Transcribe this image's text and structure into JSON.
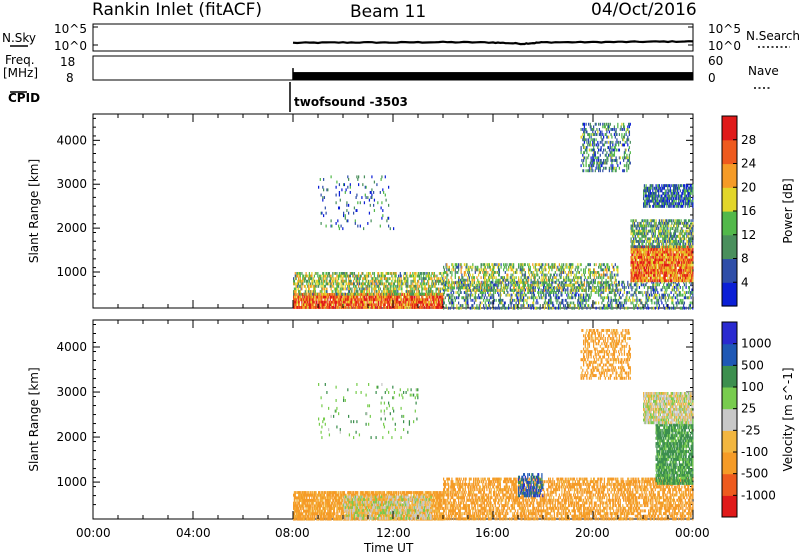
{
  "header": {
    "title_left": "Rankin Inlet (fitACF)",
    "title_center": "Beam 11",
    "title_right": "04/Oct/2016"
  },
  "noise_panel": {
    "left_label": "N.Sky",
    "right_label": "N.Search",
    "left_ticks": [
      "10^5",
      "10^0"
    ],
    "right_ticks": [
      "10^5",
      "10^0"
    ]
  },
  "freq_panel": {
    "left_label_1": "Freq.",
    "left_label_2": "[MHz]",
    "right_label": "Nave",
    "left_ticks": [
      "18",
      "8"
    ],
    "right_ticks": [
      "60",
      "0"
    ]
  },
  "cpid": {
    "label": "CPID",
    "program": "twofsound -3503"
  },
  "time_axis": {
    "label": "Time UT",
    "ticks": [
      "00:00",
      "04:00",
      "08:00",
      "12:00",
      "16:00",
      "20:00",
      "00:00"
    ]
  },
  "colors": {
    "power_scale": [
      "#0b1fd6",
      "#2f4ea8",
      "#4a8f5c",
      "#52b84a",
      "#e2d62a",
      "#f59b27",
      "#ee5a1e",
      "#e01a1a"
    ],
    "velocity_scale": [
      "#e01a1a",
      "#ee5a1e",
      "#f59b27",
      "#f2b640",
      "#c8c8c8",
      "#78cc4e",
      "#3c8f4e",
      "#1f58b5",
      "#2a2ad0"
    ]
  },
  "chart_data": [
    {
      "type": "line",
      "title": "N.Sky / N.Search",
      "xlabel": "",
      "ylabel": "N.Sky",
      "x_range_hours": [
        0,
        24
      ],
      "data_start_hour": 8.0,
      "ylim_log": [
        0,
        5
      ],
      "series": [
        {
          "x": [
            8.0,
            10.0,
            12.0,
            14.0,
            16.0,
            17.2,
            18.0,
            20.0,
            22.0,
            24.0
          ],
          "values": [
            0.6,
            0.7,
            0.7,
            0.8,
            0.7,
            0.35,
            0.75,
            0.8,
            0.9,
            1.0
          ]
        }
      ]
    },
    {
      "type": "line",
      "title": "Freq / Nave",
      "xlabel": "",
      "ylabel": "Freq. [MHz]",
      "ylim": [
        8,
        18
      ],
      "y2label": "Nave",
      "y2lim": [
        0,
        60
      ],
      "series": [
        {
          "x": [
            8.0,
            24.0
          ],
          "values": [
            11.3,
            11.3
          ]
        }
      ]
    },
    {
      "type": "heatmap",
      "title": "",
      "xlabel": "",
      "ylabel": "Slant Range [km]",
      "xlim": [
        0,
        24
      ],
      "ylim": [
        180,
        4600
      ],
      "yticks": [
        "1000",
        "2000",
        "3000",
        "4000"
      ],
      "colorbar_label": "Power [dB]",
      "colorbar_ticks": [
        "4",
        "8",
        "12",
        "16",
        "20",
        "24",
        "28"
      ],
      "colorbar_range": [
        0,
        32
      ],
      "scatter_regions": [
        {
          "x": [
            8.0,
            14.0
          ],
          "y": [
            180,
            520
          ],
          "level": 26,
          "density": 0.85
        },
        {
          "x": [
            8.0,
            14.0
          ],
          "y": [
            520,
            1000
          ],
          "level": 15,
          "density": 0.55
        },
        {
          "x": [
            14.0,
            24.0
          ],
          "y": [
            180,
            800
          ],
          "level": 10,
          "density": 0.35
        },
        {
          "x": [
            14.0,
            21.0
          ],
          "y": [
            600,
            1200
          ],
          "level": 14,
          "density": 0.4
        },
        {
          "x": [
            21.5,
            24.0
          ],
          "y": [
            800,
            1600
          ],
          "level": 24,
          "density": 0.9
        },
        {
          "x": [
            21.5,
            24.0
          ],
          "y": [
            1600,
            2200
          ],
          "level": 12,
          "density": 0.6
        },
        {
          "x": [
            22.0,
            24.0
          ],
          "y": [
            2500,
            3000
          ],
          "level": 7,
          "density": 0.7
        },
        {
          "x": [
            19.5,
            21.5
          ],
          "y": [
            3300,
            4400
          ],
          "level": 9,
          "density": 0.35
        },
        {
          "x": [
            9.0,
            12.0
          ],
          "y": [
            2000,
            3200
          ],
          "level": 6,
          "density": 0.05
        }
      ]
    },
    {
      "type": "heatmap",
      "title": "",
      "xlabel": "Time UT",
      "ylabel": "Slant Range [km]",
      "xlim": [
        0,
        24
      ],
      "ylim": [
        180,
        4600
      ],
      "yticks": [
        "1000",
        "2000",
        "3000",
        "4000"
      ],
      "colorbar_label": "Velocity [m s^-1]",
      "colorbar_ticks": [
        "-1000",
        "-500",
        "-100",
        "-25",
        "25",
        "100",
        "500",
        "1000"
      ],
      "scatter_regions": [
        {
          "x": [
            8.0,
            14.0
          ],
          "y": [
            180,
            800
          ],
          "level": -150,
          "density": 0.8
        },
        {
          "x": [
            10.0,
            13.5
          ],
          "y": [
            180,
            700
          ],
          "level": 0,
          "density": 0.6
        },
        {
          "x": [
            14.0,
            24.0
          ],
          "y": [
            180,
            1100
          ],
          "level": -200,
          "density": 0.55
        },
        {
          "x": [
            17.0,
            18.0
          ],
          "y": [
            700,
            1200
          ],
          "level": 700,
          "density": 0.5
        },
        {
          "x": [
            22.5,
            24.0
          ],
          "y": [
            1000,
            2300
          ],
          "level": 150,
          "density": 0.8
        },
        {
          "x": [
            22.0,
            24.0
          ],
          "y": [
            2300,
            3000
          ],
          "level": 0,
          "density": 0.8
        },
        {
          "x": [
            19.5,
            21.5
          ],
          "y": [
            3300,
            4400
          ],
          "level": -200,
          "density": 0.35
        },
        {
          "x": [
            9.0,
            13.0
          ],
          "y": [
            2000,
            3200
          ],
          "level": 80,
          "density": 0.04
        }
      ]
    }
  ]
}
